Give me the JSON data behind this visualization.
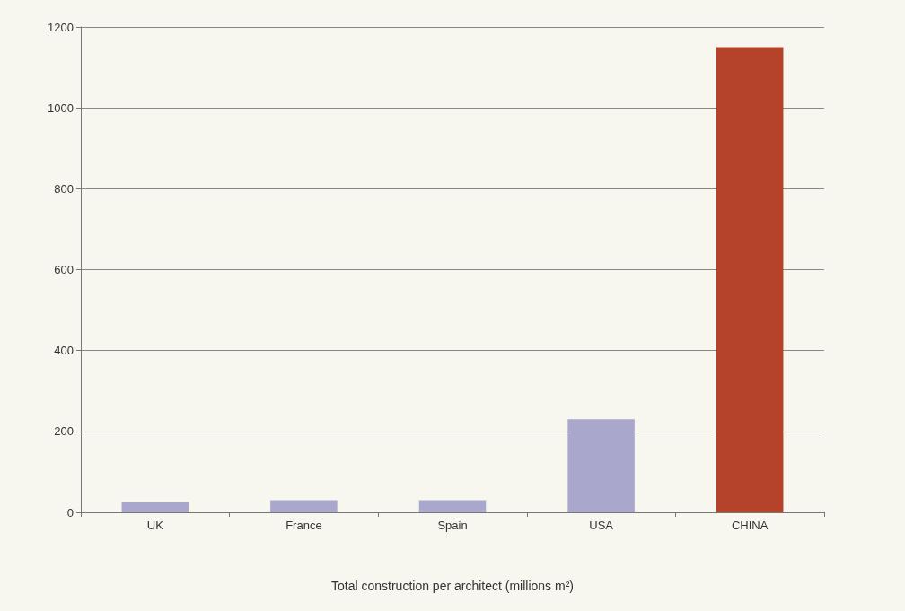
{
  "chart_data": {
    "type": "bar",
    "xlabel": "Total construction per architect (millions m²)",
    "categories": [
      "UK",
      "France",
      "Spain",
      "USA",
      "CHINA"
    ],
    "values": [
      25,
      30,
      30,
      230,
      1150
    ],
    "colors": [
      "#a9a8cc",
      "#a9a8cc",
      "#a9a8cc",
      "#a9a8cc",
      "#b5432a"
    ],
    "ylim": [
      0,
      1200
    ],
    "yticks": [
      0,
      200,
      400,
      600,
      800,
      1000,
      1200
    ],
    "grid": "y"
  }
}
